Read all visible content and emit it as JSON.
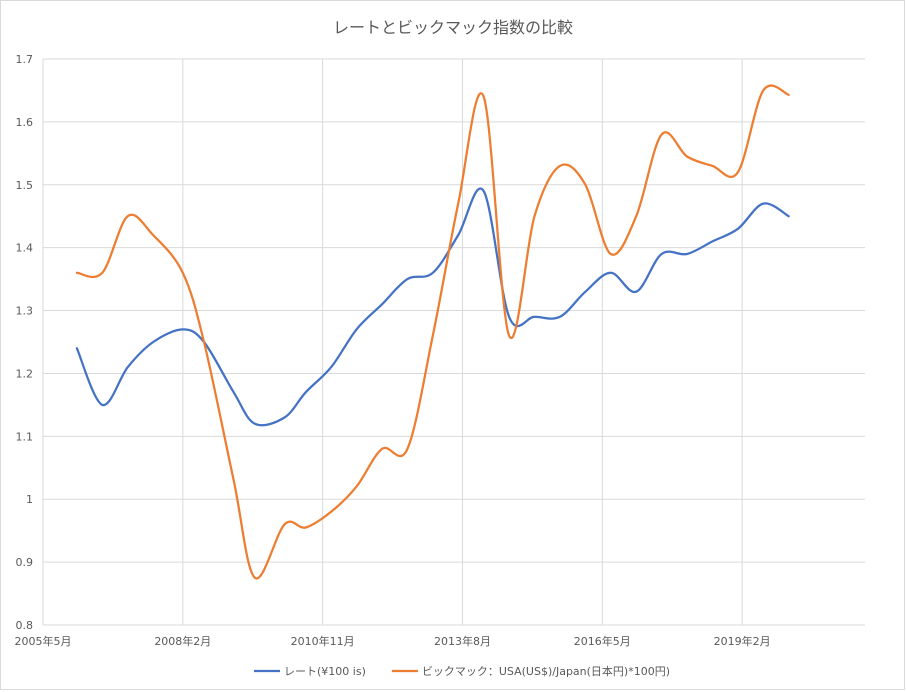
{
  "chart_data": {
    "type": "line",
    "title": "レートとビックマック指数の比較",
    "xlabel": "",
    "ylabel": "",
    "ylim": [
      0.8,
      1.7
    ],
    "yticks": [
      "0.8",
      "0.9",
      "1",
      "1.1",
      "1.2",
      "1.3",
      "1.4",
      "1.5",
      "1.6",
      "1.7"
    ],
    "xlim": [
      "2005-05",
      "2021-07"
    ],
    "xticks": [
      "2005年5月",
      "2008年2月",
      "2010年11月",
      "2013年8月",
      "2016年5月",
      "2019年2月"
    ],
    "grid": "vertical and horizontal",
    "legend_position": "bottom",
    "series": [
      {
        "name": "レート(¥100 is)",
        "color": "#4472C4",
        "points": [
          {
            "x": "2006-01",
            "y": 1.24
          },
          {
            "x": "2006-07",
            "y": 1.15
          },
          {
            "x": "2007-01",
            "y": 1.21
          },
          {
            "x": "2007-07",
            "y": 1.25
          },
          {
            "x": "2008-02",
            "y": 1.27
          },
          {
            "x": "2008-07",
            "y": 1.25
          },
          {
            "x": "2009-02",
            "y": 1.17
          },
          {
            "x": "2009-07",
            "y": 1.12
          },
          {
            "x": "2010-02",
            "y": 1.13
          },
          {
            "x": "2010-07",
            "y": 1.17
          },
          {
            "x": "2011-01",
            "y": 1.21
          },
          {
            "x": "2011-07",
            "y": 1.27
          },
          {
            "x": "2012-01",
            "y": 1.31
          },
          {
            "x": "2012-07",
            "y": 1.35
          },
          {
            "x": "2013-01",
            "y": 1.36
          },
          {
            "x": "2013-07",
            "y": 1.42
          },
          {
            "x": "2014-01",
            "y": 1.49
          },
          {
            "x": "2014-07",
            "y": 1.29
          },
          {
            "x": "2015-01",
            "y": 1.29
          },
          {
            "x": "2015-07",
            "y": 1.29
          },
          {
            "x": "2016-01",
            "y": 1.33
          },
          {
            "x": "2016-07",
            "y": 1.36
          },
          {
            "x": "2017-01",
            "y": 1.33
          },
          {
            "x": "2017-07",
            "y": 1.39
          },
          {
            "x": "2018-01",
            "y": 1.39
          },
          {
            "x": "2018-07",
            "y": 1.41
          },
          {
            "x": "2019-01",
            "y": 1.43
          },
          {
            "x": "2019-07",
            "y": 1.47
          },
          {
            "x": "2020-01",
            "y": 1.45
          }
        ]
      },
      {
        "name": "ビックマック：USA(US$)/Japan(日本円)*100円)",
        "color": "#ED7D31",
        "points": [
          {
            "x": "2006-01",
            "y": 1.36
          },
          {
            "x": "2006-07",
            "y": 1.36
          },
          {
            "x": "2007-01",
            "y": 1.45
          },
          {
            "x": "2007-07",
            "y": 1.42
          },
          {
            "x": "2008-02",
            "y": 1.36
          },
          {
            "x": "2008-07",
            "y": 1.25
          },
          {
            "x": "2009-02",
            "y": 1.03
          },
          {
            "x": "2009-07",
            "y": 0.875
          },
          {
            "x": "2010-02",
            "y": 0.96
          },
          {
            "x": "2010-07",
            "y": 0.955
          },
          {
            "x": "2011-01",
            "y": 0.98
          },
          {
            "x": "2011-07",
            "y": 1.02
          },
          {
            "x": "2012-01",
            "y": 1.08
          },
          {
            "x": "2012-07",
            "y": 1.08
          },
          {
            "x": "2013-01",
            "y": 1.26
          },
          {
            "x": "2013-07",
            "y": 1.47
          },
          {
            "x": "2014-01",
            "y": 1.64
          },
          {
            "x": "2014-07",
            "y": 1.26
          },
          {
            "x": "2015-01",
            "y": 1.45
          },
          {
            "x": "2015-07",
            "y": 1.53
          },
          {
            "x": "2016-01",
            "y": 1.5
          },
          {
            "x": "2016-07",
            "y": 1.39
          },
          {
            "x": "2017-01",
            "y": 1.45
          },
          {
            "x": "2017-07",
            "y": 1.58
          },
          {
            "x": "2018-01",
            "y": 1.545
          },
          {
            "x": "2018-07",
            "y": 1.53
          },
          {
            "x": "2019-01",
            "y": 1.52
          },
          {
            "x": "2019-07",
            "y": 1.65
          },
          {
            "x": "2020-01",
            "y": 1.643
          }
        ]
      }
    ]
  }
}
